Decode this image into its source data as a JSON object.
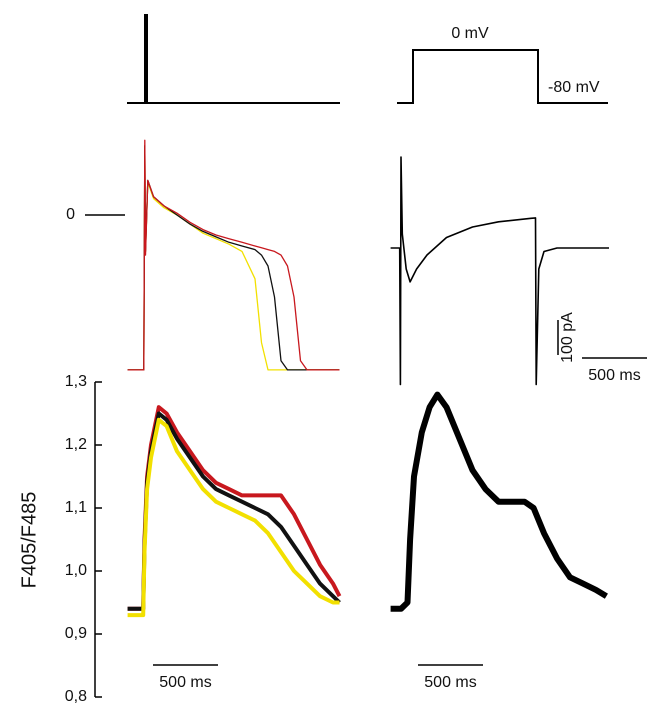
{
  "protocol": {
    "high_label": "0 mV",
    "low_label": "-80 mV"
  },
  "chart_data": [
    {
      "type": "line",
      "xlim": [
        0,
        1700
      ],
      "ylim": [
        -90,
        45
      ],
      "yticks": [
        0
      ],
      "x": [
        20,
        145,
        152,
        158,
        175,
        220,
        300,
        400,
        500,
        600,
        700,
        800,
        900,
        1000,
        1050,
        1100,
        1150,
        1200,
        1250,
        1300,
        1350,
        1400,
        1650
      ],
      "series": [
        {
          "name": null,
          "color": "#f2e000",
          "values": [
            -85,
            -85,
            38,
            -20,
            18,
            9,
            4,
            0,
            -5,
            -10,
            -13,
            -16,
            -20,
            -35,
            -70,
            -85,
            -85,
            -85,
            -85,
            -85,
            -85,
            -85,
            -85
          ]
        },
        {
          "name": null,
          "color": "#111111",
          "values": [
            -85,
            -85,
            38,
            -20,
            19,
            10,
            5,
            0,
            -5,
            -9,
            -12,
            -15,
            -17,
            -19,
            -22,
            -28,
            -45,
            -80,
            -85,
            -85,
            -85,
            -85,
            -85
          ]
        },
        {
          "name": null,
          "color": "#c8181e",
          "values": [
            -85,
            -85,
            41,
            -22,
            19,
            10,
            5,
            1,
            -4,
            -8,
            -11,
            -13,
            -15,
            -17,
            -18,
            -19,
            -20,
            -22,
            -28,
            -45,
            -80,
            -85,
            -85
          ]
        }
      ]
    },
    {
      "type": "line",
      "xlim": [
        0,
        1700
      ],
      "ylim": [
        -400,
        300
      ],
      "x": [
        20,
        90,
        95,
        100,
        110,
        140,
        170,
        220,
        300,
        450,
        650,
        850,
        1100,
        1135,
        1140,
        1160,
        1200,
        1300,
        1700
      ],
      "series": [
        {
          "name": null,
          "color": "#000000",
          "values": [
            0,
            0,
            -390,
            260,
            40,
            -60,
            -97,
            -60,
            -20,
            30,
            60,
            75,
            85,
            86,
            -390,
            -60,
            -10,
            0,
            0
          ]
        }
      ],
      "scale_y": {
        "value": 100,
        "label": "100 pA"
      },
      "scale_x": {
        "value": 500,
        "label": "500 ms"
      }
    },
    {
      "type": "line",
      "xlim": [
        0,
        1700
      ],
      "ylim": [
        0.8,
        1.3
      ],
      "ylabel": "F405/F485",
      "yticks": [
        {
          "value": 0.8,
          "label": "0,8"
        },
        {
          "value": 0.9,
          "label": "0,9"
        },
        {
          "value": 1.0,
          "label": "1,0"
        },
        {
          "value": 1.1,
          "label": "1,1"
        },
        {
          "value": 1.2,
          "label": "1,2"
        },
        {
          "value": 1.3,
          "label": "1,3"
        }
      ],
      "x": [
        20,
        100,
        140,
        150,
        170,
        200,
        260,
        320,
        400,
        500,
        600,
        700,
        800,
        900,
        1000,
        1100,
        1200,
        1300,
        1400,
        1500,
        1600,
        1650
      ],
      "series": [
        {
          "name": null,
          "color": "#c8181e",
          "values": [
            0.94,
            0.94,
            0.94,
            1.05,
            1.15,
            1.2,
            1.26,
            1.25,
            1.22,
            1.19,
            1.16,
            1.14,
            1.13,
            1.12,
            1.12,
            1.12,
            1.12,
            1.09,
            1.05,
            1.01,
            0.98,
            0.96
          ]
        },
        {
          "name": null,
          "color": "#111111",
          "values": [
            0.94,
            0.94,
            0.94,
            1.04,
            1.14,
            1.19,
            1.25,
            1.24,
            1.21,
            1.18,
            1.15,
            1.13,
            1.12,
            1.11,
            1.1,
            1.09,
            1.07,
            1.04,
            1.01,
            0.98,
            0.96,
            0.95
          ]
        },
        {
          "name": null,
          "color": "#f2e000",
          "values": [
            0.93,
            0.93,
            0.93,
            1.03,
            1.13,
            1.18,
            1.24,
            1.23,
            1.19,
            1.16,
            1.13,
            1.11,
            1.1,
            1.09,
            1.08,
            1.06,
            1.03,
            1.0,
            0.98,
            0.96,
            0.95,
            0.95
          ]
        }
      ],
      "scale_x": {
        "value": 500,
        "label": "500 ms"
      }
    },
    {
      "type": "line",
      "xlim": [
        0,
        1700
      ],
      "ylim": [
        0.8,
        1.3
      ],
      "x": [
        20,
        100,
        150,
        170,
        200,
        260,
        320,
        380,
        450,
        550,
        650,
        750,
        850,
        950,
        1050,
        1120,
        1200,
        1300,
        1400,
        1500,
        1600,
        1680
      ],
      "series": [
        {
          "name": null,
          "color": "#000000",
          "values": [
            0.94,
            0.94,
            0.95,
            1.05,
            1.15,
            1.22,
            1.26,
            1.28,
            1.26,
            1.21,
            1.16,
            1.13,
            1.11,
            1.11,
            1.11,
            1.1,
            1.06,
            1.02,
            0.99,
            0.98,
            0.97,
            0.96
          ]
        }
      ],
      "scale_x": {
        "value": 500,
        "label": "500 ms"
      }
    }
  ]
}
